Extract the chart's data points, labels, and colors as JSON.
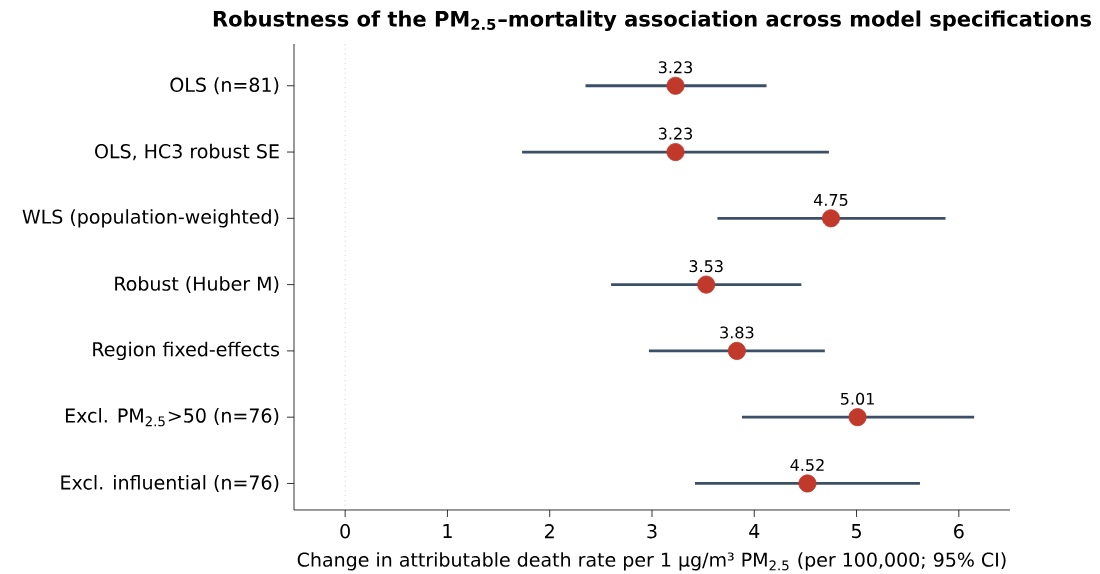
{
  "chart_data": {
    "type": "scatter",
    "orientation": "horizontal",
    "title": "Robustness of the PM$_{2.5}$–mortality association across model specifications",
    "xlabel": "Change in attributable death rate per 1 µg/m³ PM$_{2.5}$ (per 100,000; 95% CI)",
    "categories": [
      "OLS (n=81)",
      "OLS, HC3 robust SE",
      "WLS (population-weighted)",
      "Robust (Huber M)",
      "Region fixed-effects",
      "Excl. PM$_{2.5}$>50 (n=76)",
      "Excl. influential (n=76)"
    ],
    "values": [
      3.23,
      3.23,
      4.75,
      3.53,
      3.83,
      5.01,
      4.52
    ],
    "errors": [
      [
        2.35,
        4.12
      ],
      [
        1.73,
        4.73
      ],
      [
        3.64,
        5.87
      ],
      [
        2.6,
        4.46
      ],
      [
        2.97,
        4.69
      ],
      [
        3.88,
        6.15
      ],
      [
        3.42,
        5.62
      ]
    ],
    "data_labels": true,
    "color": "#c0392b",
    "marker": "circle",
    "xlim": [
      -0.5,
      6.5
    ],
    "xticks": [
      0,
      1,
      2,
      3,
      4,
      5,
      6
    ],
    "ref_lines": [
      {
        "axis": "x",
        "value": 0,
        "color": "#b0b0b0",
        "line_style": "dotted"
      }
    ],
    "grid": false
  }
}
